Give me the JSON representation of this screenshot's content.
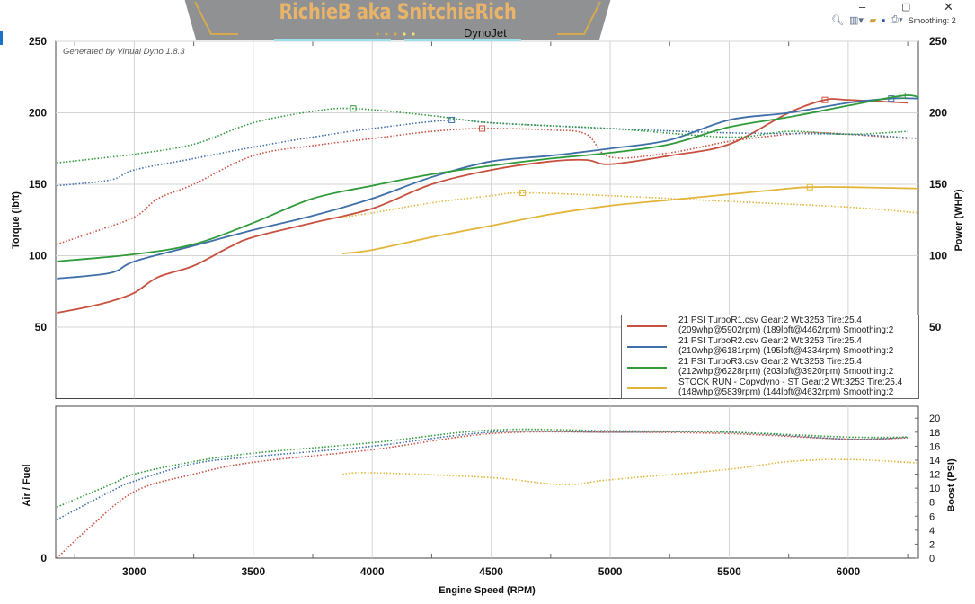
{
  "window": {
    "minimize": "–",
    "maximize": "▢",
    "close": "✕"
  },
  "toolbar": {
    "zoom_icon": "magnifier-icon",
    "filter_icon": "filter-icon",
    "open_icon": "folder-icon",
    "save_icon": "save-icon",
    "print_icon": "printer-icon",
    "smoothing_label": "Smoothing: 2"
  },
  "banner": {
    "text": "RichieB aka SnitchieRich"
  },
  "watermark": "Generated by Virtual Dyno 1.8.3",
  "chart_data": [
    {
      "type": "line",
      "title": "DynoJet",
      "xlabel": "Engine Speed (RPM)",
      "ylabel": "Torque (lbft)",
      "y2label": "Power (WHP)",
      "xlim": [
        2670,
        6295
      ],
      "ylim": [
        0,
        250
      ],
      "y2lim": [
        0,
        250
      ],
      "xticks": [
        3000,
        3500,
        4000,
        4500,
        5000,
        5500,
        6000
      ],
      "yticks": [
        50,
        100,
        150,
        200,
        250
      ],
      "y2ticks": [
        50,
        100,
        150,
        200,
        250
      ],
      "grid": true,
      "legend": "bottom-right",
      "series": [
        {
          "name": "21 PSI TurboR1.csv Gear:2 Wt:3253 Tire:25.4",
          "detail": "(209whp@5902rpm) (189lbft@4462rpm) Smoothing:2",
          "color": "#c8503f",
          "power": {
            "x": [
              2675,
              2800,
              2900,
              3000,
              3100,
              3250,
              3400,
              3500,
              3750,
              4000,
              4250,
              4500,
              4750,
              4900,
              5000,
              5250,
              5500,
              5750,
              5902,
              6000,
              6250
            ],
            "y": [
              60,
              64,
              68,
              74,
              85,
              93,
              106,
              113,
              123,
              133,
              150,
              160,
              166,
              167,
              164,
              170,
              178,
              200,
              209,
              209,
              207
            ]
          },
          "torque": {
            "x": [
              2675,
              2800,
              3000,
              3100,
              3250,
              3500,
              3750,
              4000,
              4250,
              4462,
              4750,
              4900,
              5000,
              5250,
              5500,
              5750,
              5900,
              6250
            ],
            "y": [
              108,
              115,
              127,
              140,
              150,
              170,
              177,
              182,
              187,
              189,
              188,
              185,
              169,
              172,
              180,
              185,
              186,
              182
            ]
          }
        },
        {
          "name": "21 PSI TurboR2.csv Gear:2 Wt:3253 Tire:25.4",
          "detail": "(210whp@6181rpm) (195lbft@4334rpm) Smoothing:2",
          "color": "#3f6fa8",
          "power": {
            "x": [
              2675,
              2900,
              3000,
              3250,
              3500,
              3750,
              4000,
              4250,
              4500,
              4750,
              5000,
              5250,
              5500,
              5750,
              6000,
              6181,
              6295
            ],
            "y": [
              84,
              88,
              96,
              107,
              118,
              128,
              140,
              155,
              166,
              170,
              175,
              181,
              195,
              200,
              207,
              210,
              210
            ]
          },
          "torque": {
            "x": [
              2675,
              2900,
              3000,
              3250,
              3500,
              3750,
              4000,
              4334,
              4500,
              5000,
              5500,
              6000,
              6295
            ],
            "y": [
              149,
              153,
              160,
              168,
              176,
              183,
              189,
              195,
              193,
              189,
              186,
              185,
              182
            ]
          }
        },
        {
          "name": "21 PSI TurboR3.csv Gear:2 Wt:3253 Tire:25.4",
          "detail": "(212whp@6228rpm) (203lbft@3920rpm) Smoothing:2",
          "color": "#2e9a3a",
          "power": {
            "x": [
              2675,
              3000,
              3250,
              3500,
              3750,
              4000,
              4250,
              4500,
              4750,
              5000,
              5250,
              5500,
              5750,
              6000,
              6228,
              6295
            ],
            "y": [
              96,
              101,
              108,
              123,
              140,
              149,
              157,
              163,
              168,
              172,
              178,
              190,
              197,
              205,
              212,
              211
            ]
          },
          "torque": {
            "x": [
              2675,
              2900,
              3000,
              3250,
              3500,
              3750,
              3920,
              4250,
              4500,
              5000,
              5500,
              5750,
              6000,
              6250
            ],
            "y": [
              165,
              169,
              171,
              178,
              193,
              201,
              203,
              198,
              193,
              189,
              183,
              187,
              185,
              187
            ]
          }
        },
        {
          "name": "STOCK RUN - Copydyno - ST Gear:2 Wt:3253 Tire:25.4",
          "detail": "(148whp@5839rpm) (144lbft@4632rpm) Smoothing:2",
          "color": "#e2b43a",
          "power": {
            "x": [
              3875,
              4000,
              4250,
              4500,
              4750,
              5000,
              5250,
              5500,
              5750,
              5839,
              6000,
              6295
            ],
            "y": [
              101.5,
              104,
              113,
              121,
              129,
              135,
              139,
              143,
              147,
              148,
              148,
              147
            ]
          },
          "torque": {
            "x": [
              3875,
              4000,
              4250,
              4500,
              4632,
              5000,
              5500,
              6000,
              6295
            ],
            "y": [
              127,
              130,
              137,
              142,
              144,
              142,
              138,
              134,
              130
            ]
          }
        }
      ]
    },
    {
      "type": "line",
      "xlabel": "Engine Speed (RPM)",
      "ylabel": "Air / Fuel",
      "y2label": "Boost (PSI)",
      "xlim": [
        2670,
        6295
      ],
      "ylim": [
        0,
        21.7
      ],
      "yticks_left": [
        0
      ],
      "y2ticks": [
        0,
        2,
        4,
        6,
        8,
        10,
        12,
        14,
        16,
        18,
        20
      ],
      "grid": true,
      "series": [
        {
          "color": "#c8503f",
          "x": [
            2675,
            2800,
            3000,
            3250,
            3500,
            4000,
            4500,
            5000,
            5500,
            6000,
            6250
          ],
          "y": [
            0,
            4,
            9.5,
            12,
            13.7,
            15.5,
            17.8,
            18,
            17.8,
            17,
            17.2
          ]
        },
        {
          "color": "#3f6fa8",
          "x": [
            2675,
            2900,
            3000,
            3250,
            3500,
            4000,
            4500,
            5000,
            5500,
            6000,
            6250
          ],
          "y": [
            5.5,
            9.5,
            11,
            13.5,
            14.5,
            16,
            18,
            18,
            18,
            17,
            17.3
          ]
        },
        {
          "color": "#2e9a3a",
          "x": [
            2675,
            2900,
            3000,
            3250,
            3500,
            4000,
            4500,
            5000,
            5500,
            6000,
            6250
          ],
          "y": [
            7.3,
            10.5,
            12,
            13.8,
            15,
            16.5,
            18.3,
            18.2,
            18,
            17.3,
            17.3
          ]
        },
        {
          "color": "#e2b43a",
          "x": [
            3875,
            4000,
            4500,
            4800,
            5000,
            5500,
            5750,
            6000,
            6295
          ],
          "y": [
            12,
            12.2,
            11.5,
            10.5,
            11.2,
            12.7,
            13.8,
            14.1,
            13.6
          ]
        }
      ]
    }
  ]
}
